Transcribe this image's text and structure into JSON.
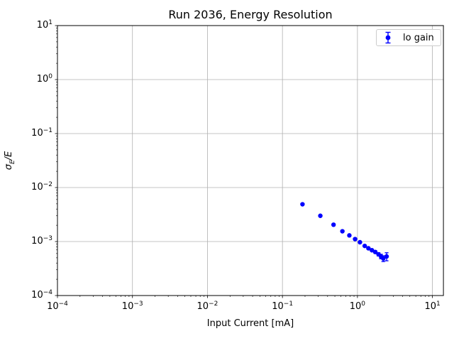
{
  "chart_data": {
    "type": "scatter",
    "title": "Run 2036, Energy Resolution",
    "xlabel": "Input Current [mA]",
    "ylabel": "σ_E/E",
    "xscale": "log",
    "yscale": "log",
    "xlim": [
      0.0001,
      14
    ],
    "ylim": [
      0.0001,
      10
    ],
    "grid": true,
    "legend_position": "upper right",
    "x_tick_exponents": [
      -4,
      -3,
      -2,
      -1,
      0,
      1
    ],
    "y_tick_exponents": [
      -4,
      -3,
      -2,
      -1,
      0,
      1
    ],
    "tick_base": "10",
    "series": [
      {
        "name": "lo gain",
        "color": "#0000ff",
        "marker": "circle-with-errorbar",
        "x": [
          0.185,
          0.32,
          0.48,
          0.63,
          0.78,
          0.93,
          1.08,
          1.25,
          1.4,
          1.56,
          1.73,
          1.91,
          2.06,
          2.21,
          2.45
        ],
        "y": [
          0.0049,
          0.003,
          0.00205,
          0.00155,
          0.0013,
          0.00111,
          0.00097,
          0.00083,
          0.00075,
          0.00069,
          0.00064,
          0.00058,
          0.00053,
          0.000485,
          0.00053
        ],
        "yerr": [
          0.0001,
          8e-05,
          6e-05,
          5e-05,
          4e-05,
          4e-05,
          3e-05,
          3e-05,
          3e-05,
          3e-05,
          3.5e-05,
          4e-05,
          5e-05,
          6e-05,
          9e-05
        ]
      }
    ]
  },
  "labels": {
    "ylabel_sigma": "σ",
    "ylabel_subscript": "E",
    "ylabel_rest": "/E"
  },
  "colors": {
    "marker": "#0000ff",
    "grid": "#b0b0b0",
    "spine": "#000000",
    "text": "#000000",
    "legend_border": "#cccccc",
    "background": "#ffffff"
  }
}
